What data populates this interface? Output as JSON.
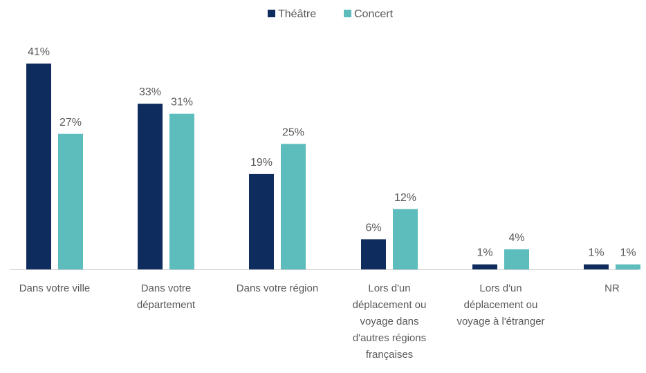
{
  "colors": {
    "theatre": "#0e2c5e",
    "concert": "#5dbdbd",
    "axis": "#cccccc",
    "text": "#595959"
  },
  "chart_data": {
    "type": "bar",
    "title": "",
    "xlabel": "",
    "ylabel": "",
    "ylim": [
      0,
      41
    ],
    "grid": false,
    "legend_position": "top-center",
    "categories": [
      [
        "Dans votre ville"
      ],
      [
        "Dans votre",
        "département"
      ],
      [
        "Dans votre région"
      ],
      [
        "Lors d'un",
        "déplacement ou",
        "voyage dans",
        "d'autres régions",
        "françaises"
      ],
      [
        "Lors d'un",
        "déplacement ou",
        "voyage à l'étranger"
      ],
      [
        "NR"
      ]
    ],
    "series": [
      {
        "name": "Théâtre",
        "color": "#0e2c5e",
        "values": [
          41,
          33,
          19,
          6,
          1,
          1
        ],
        "labels": [
          "41%",
          "33%",
          "19%",
          "6%",
          "1%",
          "1%"
        ]
      },
      {
        "name": "Concert",
        "color": "#5dbdbd",
        "values": [
          27,
          31,
          25,
          12,
          4,
          1
        ],
        "labels": [
          "27%",
          "31%",
          "25%",
          "12%",
          "4%",
          "1%"
        ]
      }
    ]
  }
}
